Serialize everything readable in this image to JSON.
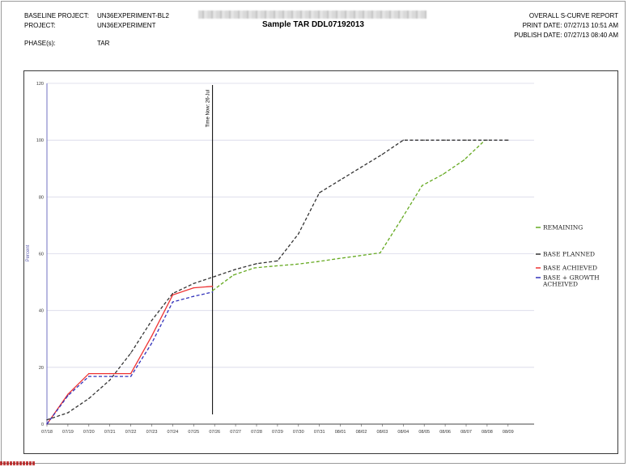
{
  "header": {
    "baseline_project_label": "BASELINE PROJECT:",
    "baseline_project_value": "UN36EXPERIMENT-BL2",
    "project_label": "PROJECT:",
    "project_value": "UN36EXPERIMENT",
    "phase_label": "PHASE(s):",
    "phase_value": "TAR",
    "title": "Sample TAR DDL07192013",
    "report_name": "OVERALL S-CURVE REPORT",
    "print_date": "PRINT DATE: 07/27/13 10:51 AM",
    "publish_date": "PUBLISH DATE: 07/27/13 08:40 AM"
  },
  "chart_data": {
    "type": "line",
    "ylabel": "Percent",
    "xlabel": "",
    "ylim": [
      0,
      120
    ],
    "yticks": [
      0,
      20,
      40,
      60,
      80,
      100,
      120
    ],
    "grid": "horizontal",
    "legend_position": "right",
    "categories": [
      "07/18",
      "07/19",
      "07/20",
      "07/21",
      "07/22",
      "07/23",
      "07/24",
      "07/25",
      "07/26",
      "07/27",
      "07/28",
      "07/29",
      "07/30",
      "07/31",
      "08/01",
      "08/02",
      "08/03",
      "08/04",
      "08/05",
      "08/06",
      "08/07",
      "08/08",
      "08/09"
    ],
    "time_now": {
      "label": "Time Now: 26-Jul",
      "x": 7.9
    },
    "series": [
      {
        "name": "REMAINING",
        "color": "#66aa22",
        "dash": "dashed",
        "x": [
          7.9,
          8.9,
          9.9,
          10.9,
          11.9,
          12.9,
          13.9,
          14.9,
          15.9,
          16.9,
          17.9,
          18.9,
          19.9,
          20.9
        ],
        "values": [
          47,
          52.5,
          55,
          55.7,
          56.3,
          57.2,
          58.3,
          59.3,
          60.3,
          72,
          84,
          88,
          93,
          100
        ]
      },
      {
        "name": "BASE PLANNED",
        "color": "#333333",
        "dash": "dashed",
        "x": [
          0,
          1,
          2,
          3,
          4,
          5,
          6,
          7,
          8,
          9,
          10,
          11,
          12,
          13,
          14,
          15,
          16,
          17,
          18,
          19,
          20,
          21,
          22
        ],
        "values": [
          1.5,
          4,
          9,
          15.5,
          25,
          36.5,
          46,
          49.5,
          52,
          54.5,
          56.5,
          57.5,
          67,
          81.5,
          86,
          90.5,
          95,
          100,
          100,
          100,
          100,
          100,
          100
        ]
      },
      {
        "name": "BASE ACHIEVED",
        "color": "#ee3333",
        "dash": "solid",
        "x": [
          0,
          1,
          2,
          3,
          4,
          5,
          6,
          7,
          7.9
        ],
        "values": [
          0,
          10.5,
          17.8,
          17.8,
          17.8,
          31,
          45.5,
          48,
          48.5
        ]
      },
      {
        "name": "BASE + GROWTH ACHIEVED",
        "color": "#3333bb",
        "dash": "dashed",
        "x": [
          0,
          1,
          2,
          3,
          4,
          5,
          6,
          7,
          7.9
        ],
        "values": [
          0,
          10,
          16.8,
          16.8,
          16.8,
          28.5,
          43,
          45,
          46.5
        ]
      }
    ]
  }
}
